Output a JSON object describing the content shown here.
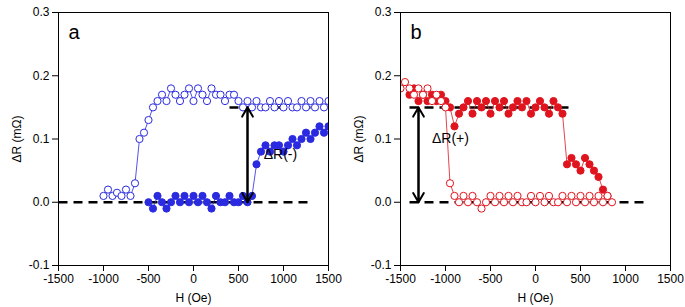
{
  "chart_data": [
    {
      "type": "scatter",
      "title": "a",
      "xlabel": "H (Oe)",
      "ylabel": "ΔR (mΩ)",
      "xlim": [
        -1500,
        1500
      ],
      "xticks": [
        -1500,
        -1000,
        -500,
        0,
        500,
        1000,
        1500
      ],
      "ylim": [
        -0.1,
        0.3
      ],
      "yticks": [
        -0.1,
        {
          "value": 0,
          "label": "0.0"
        },
        0.1,
        0.2,
        0.3
      ],
      "hlines": [
        {
          "y": 0,
          "x1": -1500,
          "x2": 1300
        },
        {
          "y": 0.15,
          "x1": 400,
          "x2": 1300
        }
      ],
      "annotations": [
        {
          "text": "ΔR(-)",
          "x": 780,
          "y": 0.075,
          "arrow": {
            "x": 600,
            "y1": 0,
            "y2": 0.15
          }
        }
      ],
      "series": [
        {
          "color": "#2a2ae0",
          "marker": "circle_open",
          "line_style": "solid",
          "x": [
            -1000,
            -950,
            -900,
            -850,
            -800,
            -750,
            -700,
            -650,
            -600,
            -550,
            -500,
            -450,
            -400,
            -350,
            -300,
            -250,
            -200,
            -150,
            -100,
            -50,
            0,
            50,
            100,
            150,
            200,
            250,
            300,
            350,
            400,
            450,
            500,
            550,
            600,
            650,
            700,
            750,
            800,
            850,
            900,
            950,
            1000,
            1050,
            1100,
            1150,
            1200,
            1250,
            1300,
            1350,
            1400,
            1450,
            1500
          ],
          "values": [
            0.01,
            0.02,
            0.01,
            0.015,
            0.01,
            0.02,
            0.01,
            0.03,
            0.1,
            0.11,
            0.13,
            0.15,
            0.16,
            0.17,
            0.16,
            0.18,
            0.17,
            0.16,
            0.17,
            0.18,
            0.16,
            0.18,
            0.17,
            0.16,
            0.18,
            0.17,
            0.17,
            0.16,
            0.17,
            0.17,
            0.16,
            0.15,
            0.16,
            0.15,
            0.16,
            0.15,
            0.15,
            0.16,
            0.15,
            0.16,
            0.15,
            0.16,
            0.15,
            0.15,
            0.16,
            0.15,
            0.16,
            0.15,
            0.16,
            0.15,
            0.16
          ]
        },
        {
          "color": "#2a2ae0",
          "marker": "circle",
          "line_style": "solid",
          "x": [
            -500,
            -450,
            -400,
            -350,
            -300,
            -250,
            -200,
            -150,
            -100,
            -50,
            0,
            50,
            100,
            150,
            200,
            250,
            300,
            350,
            400,
            450,
            500,
            550,
            600,
            650,
            700,
            750,
            800,
            850,
            900,
            950,
            1000,
            1050,
            1100,
            1150,
            1200,
            1250,
            1300,
            1350,
            1400,
            1450,
            1500
          ],
          "values": [
            0,
            -0.01,
            0.01,
            0,
            -0.01,
            0,
            0.01,
            0,
            0.01,
            0,
            0.01,
            0,
            0.01,
            0,
            -0.01,
            0.01,
            0,
            0,
            0.01,
            0,
            0,
            0.01,
            0,
            0.01,
            0.06,
            0.08,
            0.09,
            0.08,
            0.09,
            0.09,
            0.08,
            0.09,
            0.1,
            0.09,
            0.1,
            0.11,
            0.1,
            0.11,
            0.12,
            0.11,
            0.12
          ]
        }
      ]
    },
    {
      "type": "scatter",
      "title": "b",
      "xlabel": "H (Oe)",
      "ylabel": "ΔR (mΩ)",
      "xlim": [
        -1500,
        1500
      ],
      "xticks": [
        -1500,
        -1000,
        -500,
        0,
        500,
        1000,
        1500
      ],
      "ylim": [
        -0.1,
        0.3
      ],
      "yticks": [
        -0.1,
        {
          "value": 0,
          "label": "0.0"
        },
        0.1,
        0.2,
        0.3
      ],
      "hlines": [
        {
          "y": 0.15,
          "x1": -1400,
          "x2": 400
        },
        {
          "y": 0,
          "x1": -1400,
          "x2": 1200
        }
      ],
      "annotations": [
        {
          "text": "ΔR(+)",
          "x": -1150,
          "y": 0.1,
          "arrow": {
            "x": -1300,
            "y1": 0,
            "y2": 0.15
          }
        }
      ],
      "series": [
        {
          "color": "#e0141e",
          "marker": "circle",
          "line_style": "solid",
          "x": [
            -1400,
            -1350,
            -1300,
            -1250,
            -1200,
            -1150,
            -1100,
            -1050,
            -1000,
            -950,
            -900,
            -850,
            -800,
            -750,
            -700,
            -650,
            -600,
            -550,
            -500,
            -450,
            -400,
            -350,
            -300,
            -250,
            -200,
            -150,
            -100,
            -50,
            0,
            50,
            100,
            150,
            200,
            250,
            300,
            350,
            400,
            450,
            500,
            550,
            600,
            650,
            700,
            750,
            800
          ],
          "values": [
            0.17,
            0.18,
            0.16,
            0.17,
            0.16,
            0.17,
            0.16,
            0.17,
            0.16,
            0.15,
            0.12,
            0.14,
            0.15,
            0.16,
            0.14,
            0.16,
            0.15,
            0.16,
            0.14,
            0.16,
            0.15,
            0.16,
            0.14,
            0.15,
            0.16,
            0.15,
            0.16,
            0.14,
            0.15,
            0.16,
            0.15,
            0.14,
            0.16,
            0.15,
            0.14,
            0.06,
            0.07,
            0.06,
            0.05,
            0.07,
            0.06,
            0.05,
            0.04,
            0.02,
            0.01
          ]
        },
        {
          "color": "#e0141e",
          "marker": "circle_open",
          "line_style": "solid",
          "x": [
            -1500,
            -1450,
            -1400,
            -1350,
            -1300,
            -1250,
            -1200,
            -1150,
            -1100,
            -1050,
            -1000,
            -950,
            -900,
            -850,
            -800,
            -750,
            -700,
            -650,
            -600,
            -550,
            -500,
            -450,
            -400,
            -350,
            -300,
            -250,
            -200,
            -150,
            -100,
            -50,
            0,
            50,
            100,
            150,
            200,
            250,
            300,
            350,
            400,
            450,
            500,
            550,
            600,
            650,
            700,
            750,
            800,
            850
          ],
          "values": [
            0.18,
            0.19,
            0.18,
            0.17,
            0.18,
            0.17,
            0.18,
            0.16,
            0.17,
            0.16,
            0.15,
            0.03,
            0.01,
            0,
            0.01,
            0,
            0.01,
            0,
            -0.01,
            0,
            0.01,
            0,
            0.01,
            0,
            0.01,
            0,
            0.01,
            0,
            0,
            0.01,
            0,
            0.01,
            0,
            0.01,
            0,
            0,
            0.01,
            0,
            0.01,
            0,
            0.01,
            0,
            0.01,
            0,
            0.01,
            0,
            0.01,
            0
          ]
        }
      ]
    }
  ]
}
